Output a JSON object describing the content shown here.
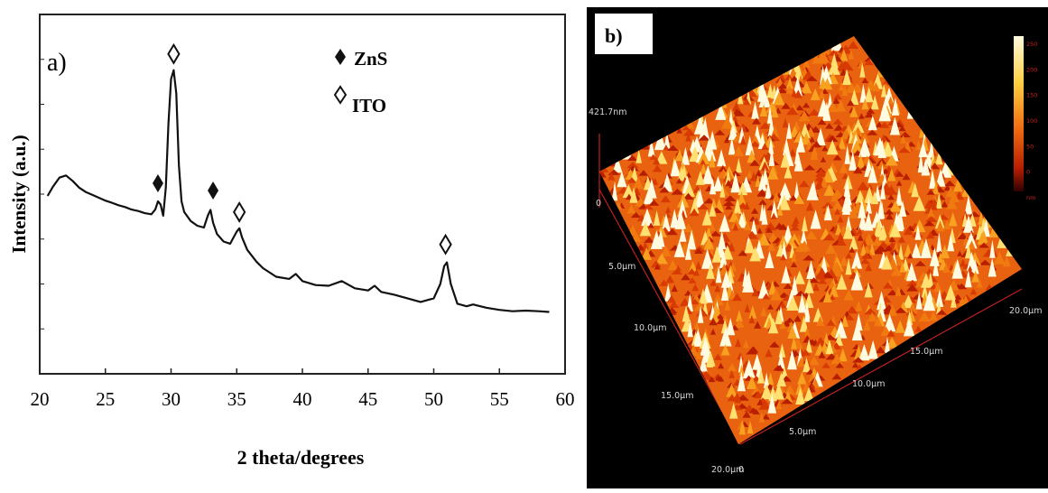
{
  "chart_data": [
    {
      "type": "line",
      "panel_label": "a)",
      "xlabel": "2 theta/degrees",
      "ylabel": "Intensity (a.u.)",
      "xlim": [
        20,
        60
      ],
      "ylim": [
        0,
        100
      ],
      "xticks": [
        20,
        25,
        30,
        35,
        40,
        45,
        50,
        55,
        60
      ],
      "x": [
        20.6,
        21.0,
        21.5,
        22.0,
        22.5,
        23.0,
        23.5,
        24.0,
        24.5,
        25.0,
        25.5,
        26.0,
        26.5,
        27.0,
        27.5,
        28.0,
        28.5,
        28.8,
        29.0,
        29.2,
        29.4,
        29.6,
        29.8,
        30.0,
        30.2,
        30.4,
        30.6,
        30.8,
        31.0,
        31.5,
        32.0,
        32.5,
        32.8,
        33.0,
        33.2,
        33.5,
        34.0,
        34.5,
        35.0,
        35.2,
        35.4,
        35.8,
        36.5,
        37.0,
        38.0,
        39.0,
        39.5,
        40.0,
        41.0,
        42.0,
        43.0,
        44.0,
        45.0,
        45.5,
        46.0,
        47.0,
        48.0,
        49.0,
        50.0,
        50.5,
        50.8,
        51.0,
        51.3,
        51.8,
        52.5,
        53.0,
        54.0,
        55.0,
        56.0,
        57.0,
        58.0,
        58.8
      ],
      "y": [
        49.5,
        52.0,
        54.6,
        55.2,
        53.7,
        51.8,
        50.6,
        49.8,
        49.0,
        48.2,
        47.6,
        46.9,
        46.4,
        45.7,
        45.3,
        44.7,
        44.4,
        45.7,
        48.0,
        47.1,
        44.0,
        51.8,
        69.6,
        82.0,
        84.5,
        78.0,
        58.0,
        48.0,
        45.0,
        42.5,
        41.2,
        40.7,
        44.0,
        45.6,
        42.0,
        38.9,
        36.8,
        36.2,
        39.6,
        40.5,
        38.0,
        34.5,
        31.2,
        29.4,
        27.0,
        26.4,
        27.8,
        25.8,
        24.7,
        24.5,
        25.8,
        23.8,
        23.2,
        24.5,
        22.8,
        22.0,
        21.0,
        20.0,
        21.0,
        25.0,
        30.0,
        31.0,
        25.0,
        19.5,
        18.8,
        19.3,
        18.4,
        17.8,
        17.4,
        17.6,
        17.4,
        17.2
      ],
      "markers": [
        {
          "symbol": "filled-diamond",
          "x": 29.0,
          "y": 53.0,
          "phase": "ZnS"
        },
        {
          "symbol": "open-diamond",
          "x": 30.2,
          "y": 89.0,
          "phase": "ITO"
        },
        {
          "symbol": "filled-diamond",
          "x": 33.2,
          "y": 51.0,
          "phase": "ZnS"
        },
        {
          "symbol": "open-diamond",
          "x": 35.2,
          "y": 45.0,
          "phase": "ITO"
        },
        {
          "symbol": "open-diamond",
          "x": 50.9,
          "y": 36.0,
          "phase": "ITO"
        }
      ],
      "legend": [
        {
          "symbol": "filled-diamond",
          "label": "ZnS"
        },
        {
          "symbol": "open-diamond",
          "label": "ITO"
        }
      ],
      "legend_position": "top-right",
      "grid": false,
      "colors": {
        "line": "#111111",
        "axis": "#222222"
      }
    },
    {
      "type": "3d-surface",
      "panel_label": "b)",
      "z_max_label": "421.7nm",
      "z_zero_label": "0",
      "x_axis_ticks": [
        "0",
        "5.0μm",
        "10.0μm",
        "15.0μm",
        "20.0μm"
      ],
      "y_axis_ticks": [
        "5.0μm",
        "10.0μm",
        "15.0μm",
        "20.0μm"
      ],
      "depth_axis_ticks": [
        "5.0μm",
        "10.0μm",
        "15.0μm",
        "20.0μm"
      ],
      "colorbar_ticks": [
        "250",
        "200",
        "150",
        "100",
        "50",
        "0",
        "nm"
      ],
      "colors": {
        "background": "#000000",
        "surface_low": "#b81e00",
        "surface_mid": "#f07a10",
        "surface_high": "#ffe070",
        "peak": "#fffbe0"
      }
    }
  ]
}
